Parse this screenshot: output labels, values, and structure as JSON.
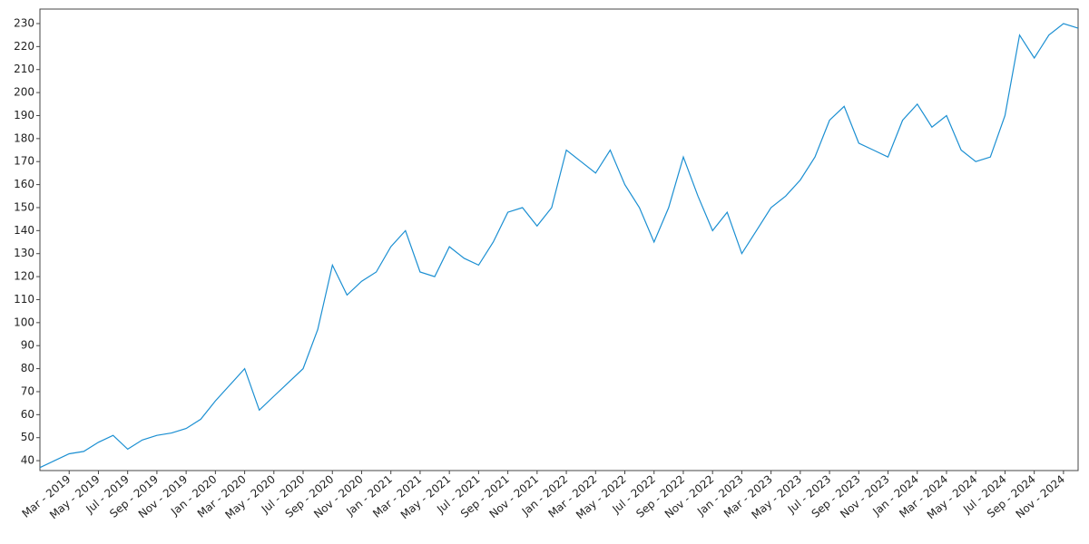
{
  "chart_data": {
    "type": "line",
    "x": [
      "2019-01",
      "2019-02",
      "2019-03",
      "2019-04",
      "2019-05",
      "2019-06",
      "2019-07",
      "2019-08",
      "2019-09",
      "2019-10",
      "2019-11",
      "2019-12",
      "2020-01",
      "2020-02",
      "2020-03",
      "2020-04",
      "2020-05",
      "2020-06",
      "2020-07",
      "2020-08",
      "2020-09",
      "2020-10",
      "2020-11",
      "2020-12",
      "2021-01",
      "2021-02",
      "2021-03",
      "2021-04",
      "2021-05",
      "2021-06",
      "2021-07",
      "2021-08",
      "2021-09",
      "2021-10",
      "2021-11",
      "2021-12",
      "2022-01",
      "2022-02",
      "2022-03",
      "2022-04",
      "2022-05",
      "2022-06",
      "2022-07",
      "2022-08",
      "2022-09",
      "2022-10",
      "2022-11",
      "2022-12",
      "2023-01",
      "2023-02",
      "2023-03",
      "2023-04",
      "2023-05",
      "2023-06",
      "2023-07",
      "2023-08",
      "2023-09",
      "2023-10",
      "2023-11",
      "2023-12",
      "2024-01",
      "2024-02",
      "2024-03",
      "2024-04",
      "2024-05",
      "2024-06",
      "2024-07",
      "2024-08",
      "2024-09",
      "2024-10",
      "2024-11",
      "2024-12"
    ],
    "series": [
      {
        "color": "#1b8fd2",
        "values": [
          37,
          40,
          43,
          44,
          48,
          51,
          45,
          49,
          51,
          52,
          54,
          58,
          66,
          73,
          80,
          62,
          68,
          74,
          80,
          97,
          125,
          112,
          118,
          122,
          133,
          140,
          122,
          120,
          133,
          128,
          125,
          135,
          148,
          150,
          142,
          150,
          175,
          170,
          165,
          175,
          160,
          150,
          135,
          150,
          172,
          155,
          140,
          148,
          130,
          140,
          150,
          155,
          162,
          172,
          188,
          194,
          178,
          175,
          172,
          188,
          195,
          185,
          190,
          175,
          170,
          172,
          190,
          225,
          215,
          225,
          230,
          228
        ]
      }
    ],
    "xlim": [
      "2019-01",
      "2024-12"
    ],
    "xticks": [
      {
        "value": "2019-03",
        "label": "Mar - 2019"
      },
      {
        "value": "2019-05",
        "label": "May - 2019"
      },
      {
        "value": "2019-07",
        "label": "Jul - 2019"
      },
      {
        "value": "2019-09",
        "label": "Sep - 2019"
      },
      {
        "value": "2019-11",
        "label": "Nov - 2019"
      },
      {
        "value": "2020-01",
        "label": "Jan - 2020"
      },
      {
        "value": "2020-03",
        "label": "Mar - 2020"
      },
      {
        "value": "2020-05",
        "label": "May - 2020"
      },
      {
        "value": "2020-07",
        "label": "Jul - 2020"
      },
      {
        "value": "2020-09",
        "label": "Sep - 2020"
      },
      {
        "value": "2020-11",
        "label": "Nov - 2020"
      },
      {
        "value": "2021-01",
        "label": "Jan - 2021"
      },
      {
        "value": "2021-03",
        "label": "Mar - 2021"
      },
      {
        "value": "2021-05",
        "label": "May - 2021"
      },
      {
        "value": "2021-07",
        "label": "Jul - 2021"
      },
      {
        "value": "2021-09",
        "label": "Sep - 2021"
      },
      {
        "value": "2021-11",
        "label": "Nov - 2021"
      },
      {
        "value": "2022-01",
        "label": "Jan - 2022"
      },
      {
        "value": "2022-03",
        "label": "Mar - 2022"
      },
      {
        "value": "2022-05",
        "label": "May - 2022"
      },
      {
        "value": "2022-07",
        "label": "Jul - 2022"
      },
      {
        "value": "2022-09",
        "label": "Sep - 2022"
      },
      {
        "value": "2022-11",
        "label": "Nov - 2022"
      },
      {
        "value": "2023-01",
        "label": "Jan - 2023"
      },
      {
        "value": "2023-03",
        "label": "Mar - 2023"
      },
      {
        "value": "2023-05",
        "label": "May - 2023"
      },
      {
        "value": "2023-07",
        "label": "Jul - 2023"
      },
      {
        "value": "2023-09",
        "label": "Sep - 2023"
      },
      {
        "value": "2023-11",
        "label": "Nov - 2023"
      },
      {
        "value": "2024-01",
        "label": "Jan - 2024"
      },
      {
        "value": "2024-03",
        "label": "Mar - 2024"
      },
      {
        "value": "2024-05",
        "label": "May - 2024"
      },
      {
        "value": "2024-07",
        "label": "Jul - 2024"
      },
      {
        "value": "2024-09",
        "label": "Sep - 2024"
      },
      {
        "value": "2024-11",
        "label": "Nov - 2024"
      }
    ],
    "ylim": [
      35.7,
      236.3
    ],
    "yticks": [
      40,
      50,
      60,
      70,
      80,
      90,
      100,
      110,
      120,
      130,
      140,
      150,
      160,
      170,
      180,
      190,
      200,
      210,
      220,
      230
    ]
  }
}
